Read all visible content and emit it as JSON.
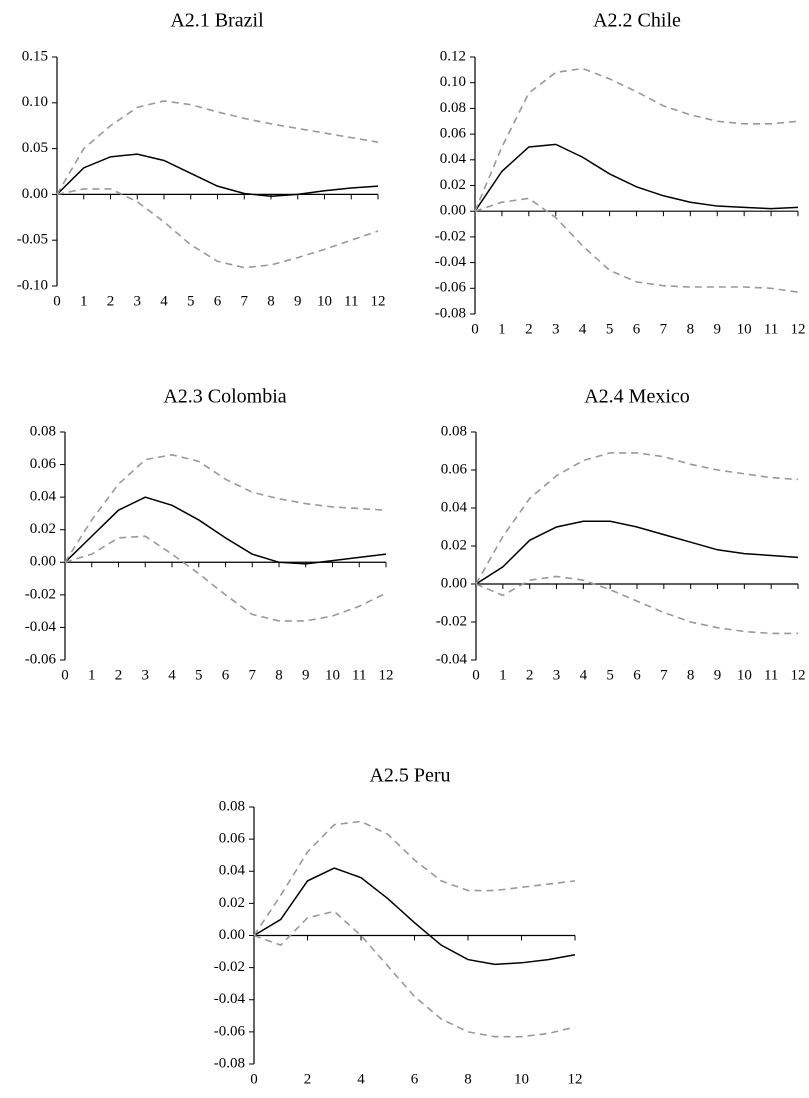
{
  "colors": {
    "point_estimate": "#000000",
    "bands": "#999999",
    "axis": "#000000"
  },
  "chart_data": [
    {
      "type": "line",
      "title": "A2.1 Brazil",
      "xlabel": "",
      "ylabel": "",
      "xlim": [
        0,
        12
      ],
      "ylim": [
        -0.1,
        0.15
      ],
      "xticks": [
        0,
        1,
        2,
        3,
        4,
        5,
        6,
        7,
        8,
        9,
        10,
        11,
        12
      ],
      "xtick_labels": [
        "0",
        "1",
        "2",
        "3",
        "4",
        "5",
        "6",
        "7",
        "8",
        "9",
        "10",
        "11",
        "12"
      ],
      "yticks": [
        -0.1,
        -0.05,
        0.0,
        0.05,
        0.1,
        0.15
      ],
      "ytick_labels": [
        "-0.10",
        "-0.05",
        "0.00",
        "0.05",
        "0.10",
        "0.15"
      ],
      "x": [
        0,
        1,
        2,
        3,
        4,
        5,
        6,
        7,
        8,
        9,
        10,
        11,
        12
      ],
      "series": [
        {
          "role": "estimate",
          "values": [
            0.0,
            0.029,
            0.041,
            0.044,
            0.037,
            0.023,
            0.009,
            0.001,
            -0.002,
            0.0,
            0.004,
            0.007,
            0.009
          ]
        },
        {
          "role": "upper",
          "values": [
            0.0,
            0.05,
            0.075,
            0.095,
            0.102,
            0.098,
            0.09,
            0.083,
            0.077,
            0.072,
            0.067,
            0.062,
            0.057
          ]
        },
        {
          "role": "lower",
          "values": [
            0.0,
            0.006,
            0.006,
            -0.008,
            -0.03,
            -0.055,
            -0.073,
            -0.08,
            -0.077,
            -0.069,
            -0.06,
            -0.05,
            -0.04
          ]
        }
      ]
    },
    {
      "type": "line",
      "title": "A2.2 Chile",
      "xlabel": "",
      "ylabel": "",
      "xlim": [
        0,
        12
      ],
      "ylim": [
        -0.08,
        0.12
      ],
      "xticks": [
        0,
        1,
        2,
        3,
        4,
        5,
        6,
        7,
        8,
        9,
        10,
        11,
        12
      ],
      "xtick_labels": [
        "0",
        "1",
        "2",
        "3",
        "4",
        "5",
        "6",
        "7",
        "8",
        "9",
        "10",
        "11",
        "12"
      ],
      "yticks": [
        -0.08,
        -0.06,
        -0.04,
        -0.02,
        0.0,
        0.02,
        0.04,
        0.06,
        0.08,
        0.1,
        0.12
      ],
      "ytick_labels": [
        "-0.08",
        "-0.06",
        "-0.04",
        "-0.02",
        "0.00",
        "0.02",
        "0.04",
        "0.06",
        "0.08",
        "0.10",
        "0.12"
      ],
      "x": [
        0,
        1,
        2,
        3,
        4,
        5,
        6,
        7,
        8,
        9,
        10,
        11,
        12
      ],
      "series": [
        {
          "role": "estimate",
          "values": [
            0.0,
            0.031,
            0.05,
            0.052,
            0.042,
            0.029,
            0.019,
            0.012,
            0.007,
            0.004,
            0.003,
            0.002,
            0.003
          ]
        },
        {
          "role": "upper",
          "values": [
            0.0,
            0.05,
            0.092,
            0.108,
            0.111,
            0.103,
            0.093,
            0.082,
            0.075,
            0.07,
            0.068,
            0.068,
            0.07
          ]
        },
        {
          "role": "lower",
          "values": [
            0.0,
            0.007,
            0.01,
            -0.005,
            -0.027,
            -0.046,
            -0.055,
            -0.058,
            -0.059,
            -0.059,
            -0.059,
            -0.06,
            -0.063
          ]
        }
      ]
    },
    {
      "type": "line",
      "title": "A2.3 Colombia",
      "xlabel": "",
      "ylabel": "",
      "xlim": [
        0,
        12
      ],
      "ylim": [
        -0.06,
        0.08
      ],
      "xticks": [
        0,
        1,
        2,
        3,
        4,
        5,
        6,
        7,
        8,
        9,
        10,
        11,
        12
      ],
      "xtick_labels": [
        "0",
        "1",
        "2",
        "3",
        "4",
        "5",
        "6",
        "7",
        "8",
        "9",
        "10",
        "11",
        "12"
      ],
      "yticks": [
        -0.06,
        -0.04,
        -0.02,
        0.0,
        0.02,
        0.04,
        0.06,
        0.08
      ],
      "ytick_labels": [
        "-0.06",
        "-0.04",
        "-0.02",
        "0.00",
        "0.02",
        "0.04",
        "0.06",
        "0.08"
      ],
      "x": [
        0,
        1,
        2,
        3,
        4,
        5,
        6,
        7,
        8,
        9,
        10,
        11,
        12
      ],
      "series": [
        {
          "role": "estimate",
          "values": [
            0.0,
            0.016,
            0.032,
            0.04,
            0.035,
            0.026,
            0.015,
            0.005,
            0.0,
            -0.001,
            0.001,
            0.003,
            0.005
          ]
        },
        {
          "role": "upper",
          "values": [
            0.0,
            0.026,
            0.048,
            0.063,
            0.066,
            0.062,
            0.051,
            0.043,
            0.039,
            0.036,
            0.034,
            0.033,
            0.032
          ]
        },
        {
          "role": "lower",
          "values": [
            0.0,
            0.005,
            0.015,
            0.016,
            0.005,
            -0.007,
            -0.02,
            -0.032,
            -0.036,
            -0.036,
            -0.033,
            -0.027,
            -0.019
          ]
        }
      ]
    },
    {
      "type": "line",
      "title": "A2.4 Mexico",
      "xlabel": "",
      "ylabel": "",
      "xlim": [
        0,
        12
      ],
      "ylim": [
        -0.04,
        0.08
      ],
      "xticks": [
        0,
        1,
        2,
        3,
        4,
        5,
        6,
        7,
        8,
        9,
        10,
        11,
        12
      ],
      "xtick_labels": [
        "0",
        "1",
        "2",
        "3",
        "4",
        "5",
        "6",
        "7",
        "8",
        "9",
        "10",
        "11",
        "12"
      ],
      "yticks": [
        -0.04,
        -0.02,
        0.0,
        0.02,
        0.04,
        0.06,
        0.08
      ],
      "ytick_labels": [
        "-0.04",
        "-0.02",
        "0.00",
        "0.02",
        "0.04",
        "0.06",
        "0.08"
      ],
      "x": [
        0,
        1,
        2,
        3,
        4,
        5,
        6,
        7,
        8,
        9,
        10,
        11,
        12
      ],
      "series": [
        {
          "role": "estimate",
          "values": [
            0.0,
            0.009,
            0.023,
            0.03,
            0.033,
            0.033,
            0.03,
            0.026,
            0.022,
            0.018,
            0.016,
            0.015,
            0.014
          ]
        },
        {
          "role": "upper",
          "values": [
            0.0,
            0.025,
            0.045,
            0.057,
            0.065,
            0.069,
            0.069,
            0.067,
            0.063,
            0.06,
            0.058,
            0.056,
            0.055
          ]
        },
        {
          "role": "lower",
          "values": [
            0.0,
            -0.006,
            0.002,
            0.004,
            0.002,
            -0.003,
            -0.009,
            -0.015,
            -0.02,
            -0.023,
            -0.025,
            -0.026,
            -0.026
          ]
        }
      ]
    },
    {
      "type": "line",
      "title": "A2.5 Peru",
      "xlabel": "",
      "ylabel": "",
      "xlim": [
        0,
        12
      ],
      "ylim": [
        -0.08,
        0.08
      ],
      "xticks": [
        0,
        2,
        4,
        6,
        8,
        10,
        12
      ],
      "xtick_labels": [
        "0",
        "2",
        "4",
        "6",
        "8",
        "10",
        "12"
      ],
      "yticks": [
        -0.08,
        -0.06,
        -0.04,
        -0.02,
        0.0,
        0.02,
        0.04,
        0.06,
        0.08
      ],
      "ytick_labels": [
        "-0.08",
        "-0.06",
        "-0.04",
        "-0.02",
        "0.00",
        "0.02",
        "0.04",
        "0.06",
        "0.08"
      ],
      "x": [
        0,
        1,
        2,
        3,
        4,
        5,
        6,
        7,
        8,
        9,
        10,
        11,
        12
      ],
      "series": [
        {
          "role": "estimate",
          "values": [
            0.0,
            0.01,
            0.034,
            0.042,
            0.036,
            0.023,
            0.008,
            -0.006,
            -0.015,
            -0.018,
            -0.017,
            -0.015,
            -0.012
          ]
        },
        {
          "role": "upper",
          "values": [
            0.0,
            0.025,
            0.052,
            0.069,
            0.071,
            0.063,
            0.047,
            0.034,
            0.028,
            0.028,
            0.03,
            0.032,
            0.034
          ]
        },
        {
          "role": "lower",
          "values": [
            0.0,
            -0.006,
            0.011,
            0.015,
            0.0,
            -0.019,
            -0.038,
            -0.052,
            -0.06,
            -0.063,
            -0.063,
            -0.061,
            -0.057
          ]
        }
      ]
    }
  ]
}
